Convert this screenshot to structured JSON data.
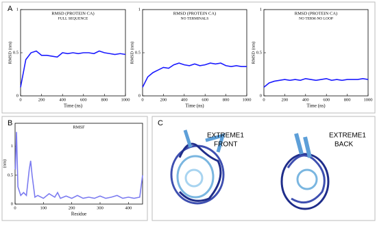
{
  "panel_labels": [
    "A",
    "B",
    "C"
  ],
  "chart_data": [
    {
      "type": "line",
      "title": "RMSD (PROTEIN CA)",
      "subtitle": "FULL SEQUENCE",
      "xlabel": "Time (ns)",
      "ylabel": "RMSD (nm)",
      "x": [
        0,
        50,
        100,
        150,
        200,
        250,
        300,
        350,
        400,
        450,
        500,
        550,
        600,
        650,
        700,
        750,
        800,
        850,
        900,
        950,
        1000
      ],
      "values": [
        0.1,
        0.42,
        0.5,
        0.52,
        0.47,
        0.47,
        0.46,
        0.45,
        0.5,
        0.49,
        0.5,
        0.49,
        0.5,
        0.5,
        0.49,
        0.52,
        0.5,
        0.49,
        0.48,
        0.49,
        0.48
      ],
      "color": "#1a1aff",
      "xlim": [
        0,
        1000
      ],
      "xticks": [
        0,
        200,
        400,
        600,
        800,
        1000
      ],
      "ylim": [
        0,
        1
      ],
      "yticks": [
        0,
        0.5,
        1
      ]
    },
    {
      "type": "line",
      "title": "RMSD (PROTEIN CA)",
      "subtitle": "NO TERMINALS",
      "xlabel": "Time (ns)",
      "ylabel": "RMSD (nm)",
      "x": [
        0,
        50,
        100,
        150,
        200,
        250,
        300,
        350,
        400,
        450,
        500,
        550,
        600,
        650,
        700,
        750,
        800,
        850,
        900,
        950,
        1000
      ],
      "values": [
        0.1,
        0.22,
        0.27,
        0.3,
        0.33,
        0.32,
        0.36,
        0.38,
        0.36,
        0.35,
        0.37,
        0.35,
        0.36,
        0.38,
        0.37,
        0.38,
        0.35,
        0.34,
        0.35,
        0.34,
        0.34
      ],
      "color": "#1a1aff",
      "xlim": [
        0,
        1000
      ],
      "xticks": [
        0,
        200,
        400,
        600,
        800,
        1000
      ],
      "ylim": [
        0,
        1
      ],
      "yticks": [
        0,
        0.5,
        1
      ]
    },
    {
      "type": "line",
      "title": "RMSD (PROTEIN CA)",
      "subtitle": "NO TERM-NO LOOP",
      "xlabel": "Time (ns)",
      "ylabel": "RMSD (nm)",
      "x": [
        0,
        50,
        100,
        150,
        200,
        250,
        300,
        350,
        400,
        450,
        500,
        550,
        600,
        650,
        700,
        750,
        800,
        850,
        900,
        950,
        1000
      ],
      "values": [
        0.1,
        0.15,
        0.17,
        0.18,
        0.19,
        0.18,
        0.19,
        0.18,
        0.2,
        0.19,
        0.18,
        0.19,
        0.2,
        0.18,
        0.19,
        0.18,
        0.19,
        0.19,
        0.19,
        0.2,
        0.19
      ],
      "color": "#1a1aff",
      "xlim": [
        0,
        1000
      ],
      "xticks": [
        0,
        200,
        400,
        600,
        800,
        1000
      ],
      "ylim": [
        0,
        1
      ],
      "yticks": [
        0,
        0.5,
        1
      ]
    },
    {
      "type": "line",
      "title": "RMSF",
      "xlabel": "Residue",
      "ylabel": "(nm)",
      "x": [
        1,
        5,
        10,
        20,
        30,
        40,
        50,
        55,
        60,
        70,
        80,
        100,
        120,
        140,
        150,
        160,
        180,
        200,
        220,
        240,
        260,
        280,
        300,
        320,
        340,
        360,
        380,
        400,
        420,
        440,
        450
      ],
      "values": [
        0.6,
        1.25,
        0.3,
        0.15,
        0.2,
        0.15,
        0.6,
        0.75,
        0.5,
        0.12,
        0.15,
        0.1,
        0.18,
        0.12,
        0.2,
        0.1,
        0.14,
        0.1,
        0.15,
        0.1,
        0.12,
        0.1,
        0.14,
        0.1,
        0.12,
        0.15,
        0.1,
        0.12,
        0.1,
        0.12,
        0.5
      ],
      "color": "#7b7bf0",
      "xlim": [
        0,
        450
      ],
      "xticks": [
        0,
        100,
        200,
        300,
        400
      ],
      "ylim": [
        0,
        1.4
      ],
      "yticks": [
        0,
        0.5,
        1
      ]
    }
  ],
  "structures": [
    [
      "EXTREME1",
      "FRONT"
    ],
    [
      "EXTREME1",
      "BACK"
    ]
  ]
}
